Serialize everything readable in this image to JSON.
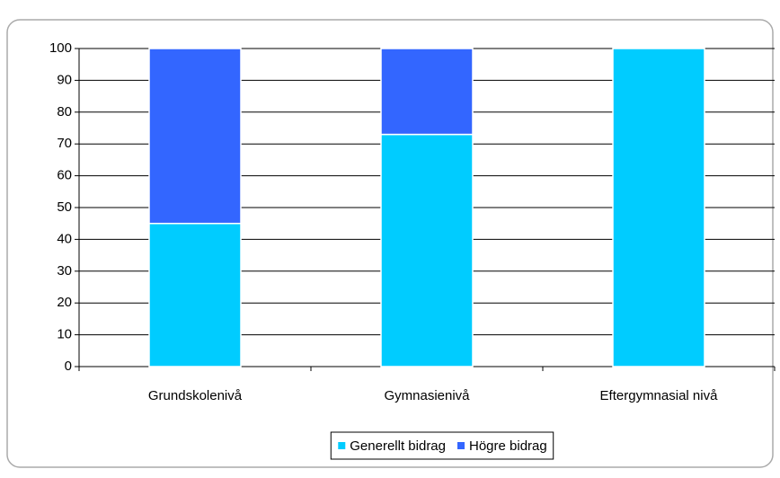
{
  "chart_data": {
    "type": "stacked_bar",
    "categories": [
      "Grundskolenivå",
      "Gymnasienivå",
      "Eftergymnasial nivå"
    ],
    "series": [
      {
        "name": "Generellt bidrag",
        "color": "#00ccff",
        "values": [
          45,
          73,
          100
        ]
      },
      {
        "name": "Högre bidrag",
        "color": "#3366ff",
        "values": [
          55,
          27,
          0
        ]
      }
    ],
    "ylim": [
      0,
      100
    ],
    "yticks": [
      0,
      10,
      20,
      30,
      40,
      50,
      60,
      70,
      80,
      90,
      100
    ],
    "grid": true,
    "legend": "bottom"
  }
}
